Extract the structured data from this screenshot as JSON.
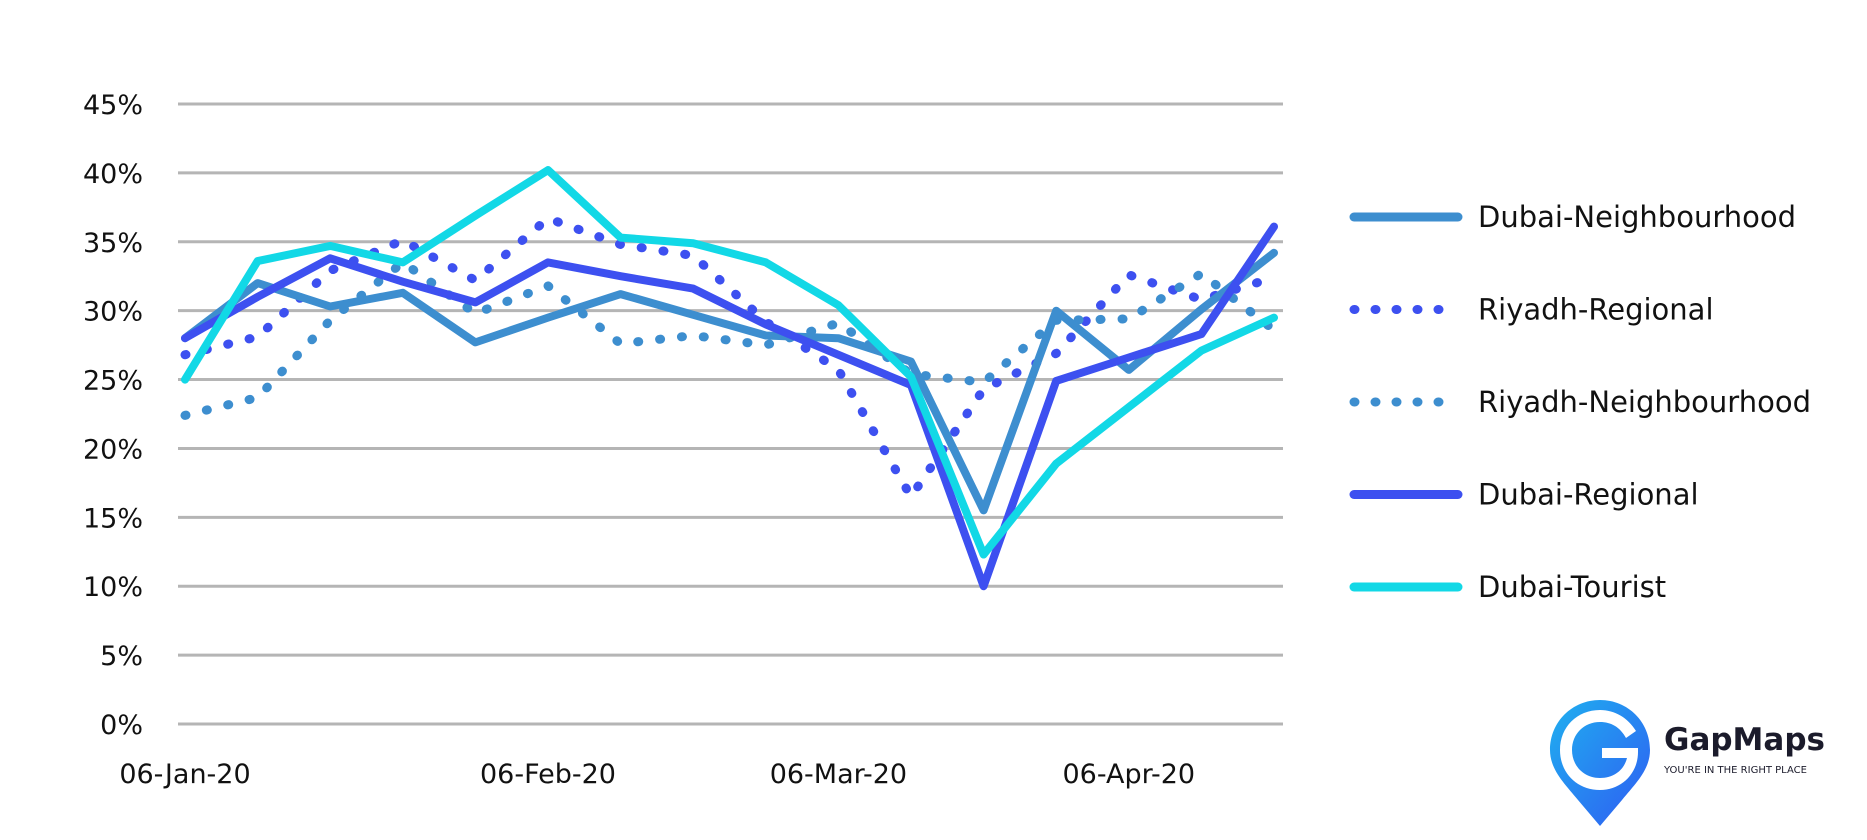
{
  "chart_data": {
    "type": "line",
    "title": "",
    "xlabel": "",
    "ylabel": "",
    "x": [
      "06-Jan-20",
      "13-Jan-20",
      "20-Jan-20",
      "27-Jan-20",
      "03-Feb-20",
      "10-Feb-20",
      "17-Feb-20",
      "24-Feb-20",
      "02-Mar-20",
      "09-Mar-20",
      "16-Mar-20",
      "23-Mar-20",
      "30-Mar-20",
      "06-Apr-20",
      "13-Apr-20",
      "20-Apr-20"
    ],
    "x_tick_labels": [
      {
        "index": 0,
        "label": "06-Jan-20"
      },
      {
        "index": 5,
        "label": "06-Feb-20"
      },
      {
        "index": 9,
        "label": "06-Mar-20"
      },
      {
        "index": 13,
        "label": "06-Apr-20"
      }
    ],
    "y_ticks": [
      "0%",
      "5%",
      "10%",
      "15%",
      "20%",
      "25%",
      "30%",
      "35%",
      "40%",
      "45%"
    ],
    "ylim": [
      0,
      45
    ],
    "y_unit": "%",
    "grid": true,
    "legend_position": "right",
    "series": [
      {
        "name": "Dubai-Neighbourhood",
        "color": "#3d8ecf",
        "style": "solid",
        "values": [
          28.0,
          32.0,
          30.3,
          31.3,
          27.7,
          29.5,
          31.2,
          29.7,
          28.2,
          28.0,
          26.3,
          15.5,
          30.0,
          25.7,
          30.1,
          34.2
        ]
      },
      {
        "name": "Riyadh-Regional",
        "color": "#3d50f0",
        "style": "dotted",
        "values": [
          26.8,
          28.1,
          32.9,
          35.1,
          32.2,
          36.7,
          34.8,
          34.0,
          29.2,
          25.7,
          16.5,
          24.3,
          26.9,
          32.6,
          30.8,
          32.4
        ]
      },
      {
        "name": "Riyadh-Neighbourhood",
        "color": "#3d8ecf",
        "style": "dotted",
        "values": [
          22.4,
          23.7,
          29.3,
          33.5,
          29.8,
          31.8,
          27.6,
          28.2,
          27.5,
          29.1,
          25.4,
          24.8,
          29.3,
          29.4,
          32.7,
          28.6
        ]
      },
      {
        "name": "Dubai-Regional",
        "color": "#3d50f0",
        "style": "solid",
        "values": [
          28.0,
          31.0,
          33.8,
          32.1,
          30.6,
          33.5,
          32.5,
          31.6,
          29.0,
          26.8,
          24.6,
          10.0,
          24.9,
          26.6,
          28.3,
          36.1
        ]
      },
      {
        "name": "Dubai-Tourist",
        "color": "#12d8e6",
        "style": "solid",
        "values": [
          25.0,
          33.6,
          34.7,
          33.5,
          36.9,
          40.2,
          35.3,
          34.9,
          33.5,
          30.4,
          25.2,
          12.3,
          18.9,
          23.0,
          27.1,
          29.5
        ]
      }
    ]
  },
  "logo": {
    "name": "GapMaps",
    "tagline": "YOU'RE IN THE RIGHT PLACE",
    "colors": {
      "primary": "#2f5cf2",
      "secondary": "#1fb0f0",
      "text": "#1b1b2b"
    }
  }
}
